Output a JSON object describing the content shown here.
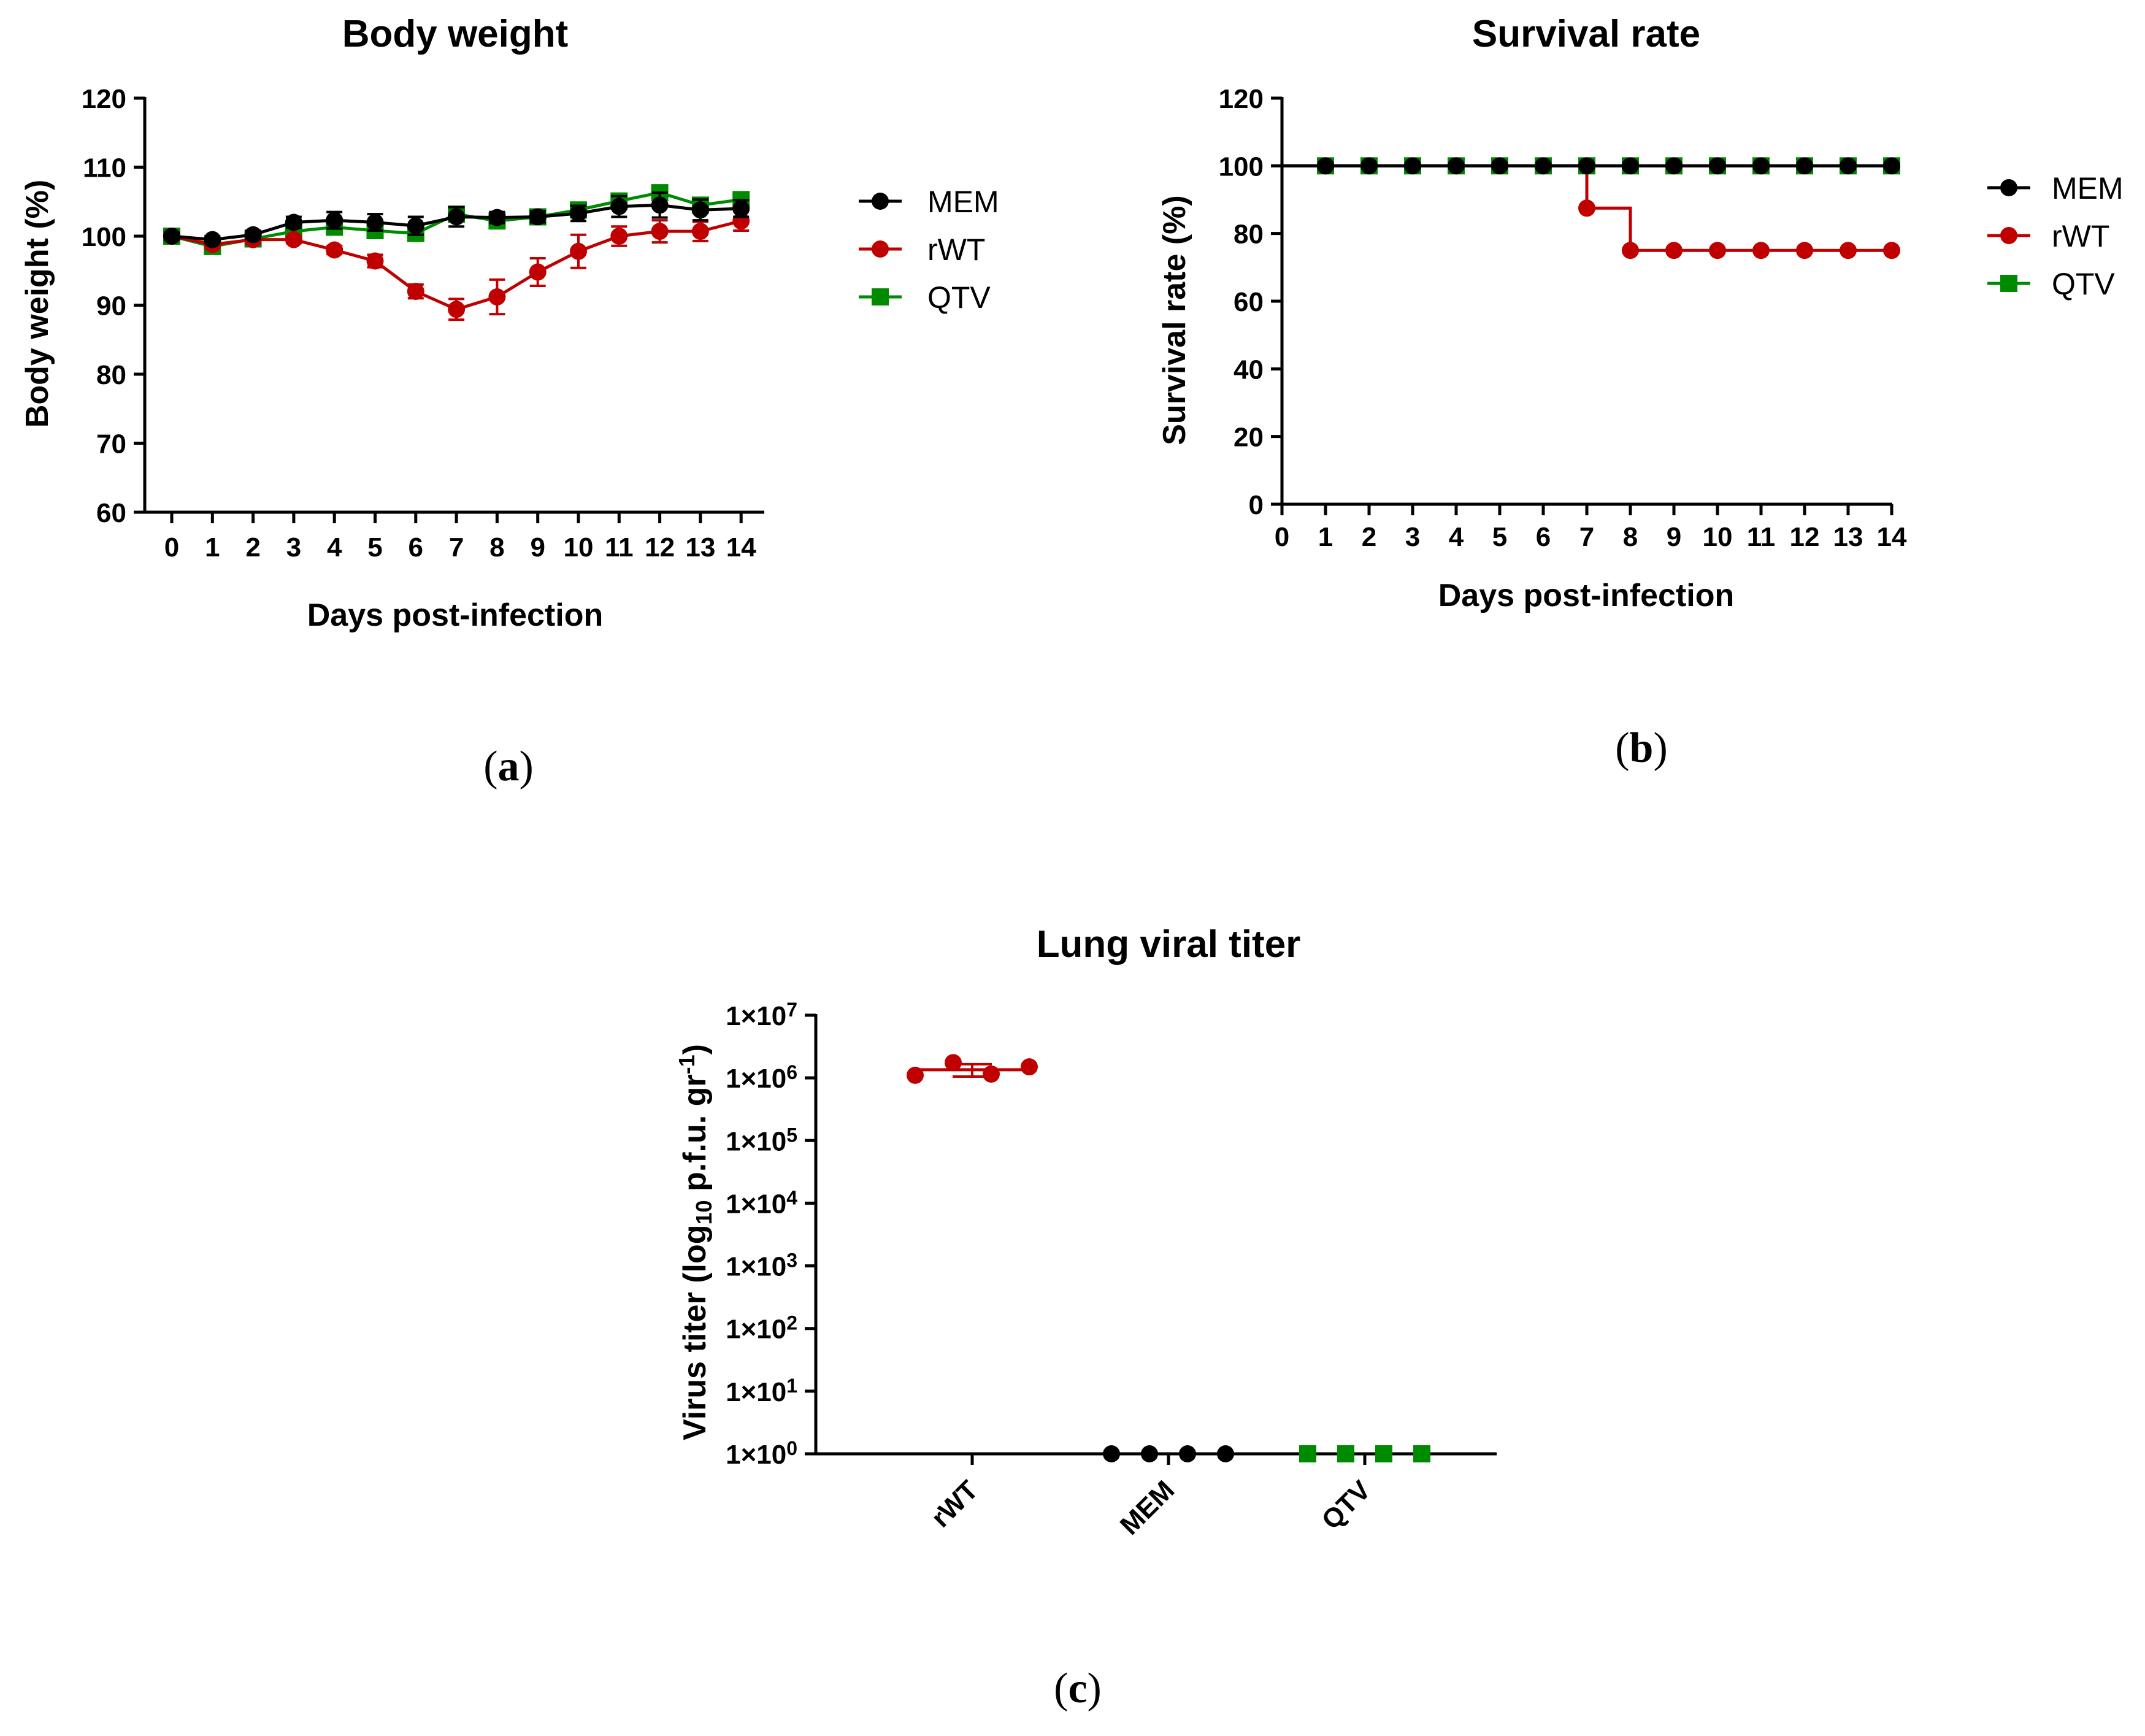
{
  "colors": {
    "MEM": "#000000",
    "rWT": "#c00000",
    "QTV": "#008a00"
  },
  "legend_labels": [
    "MEM",
    "rWT",
    "QTV"
  ],
  "panel_labels": {
    "a": {
      "open": "(",
      "letter": "a",
      "close": ")"
    },
    "b": {
      "open": "(",
      "letter": "b",
      "close": ")"
    },
    "c": {
      "open": "(",
      "letter": "c",
      "close": ")"
    }
  },
  "chart_data": [
    {
      "id": "a",
      "type": "line",
      "title": "Body weight",
      "xlabel": "Days post-infection",
      "ylabel": "Body weight (%)",
      "ylim": [
        60,
        120
      ],
      "yticks": [
        60,
        70,
        80,
        90,
        100,
        110,
        120
      ],
      "x": [
        0,
        1,
        2,
        3,
        4,
        5,
        6,
        7,
        8,
        9,
        10,
        11,
        12,
        13,
        14
      ],
      "series": [
        {
          "name": "MEM",
          "marker": "circle",
          "values": [
            100,
            99.5,
            100.2,
            102,
            102.3,
            102,
            101.5,
            102.8,
            102.7,
            102.8,
            103.3,
            104.3,
            104.5,
            103.8,
            104
          ],
          "errors": [
            0.5,
            0.5,
            0.6,
            0.8,
            1.2,
            1.2,
            1.3,
            1.4,
            0.8,
            0.8,
            1.1,
            1.5,
            1.8,
            1.5,
            1.2
          ]
        },
        {
          "name": "rWT",
          "marker": "circle",
          "values": [
            100,
            98.8,
            99.5,
            99.5,
            98,
            96.4,
            92,
            89.4,
            91.2,
            94.8,
            97.8,
            100,
            100.7,
            100.7,
            102.2
          ],
          "errors": [
            0.5,
            0.5,
            0.6,
            0.5,
            0.6,
            0.9,
            1.0,
            1.5,
            2.5,
            2.0,
            2.4,
            1.4,
            1.6,
            1.4,
            1.4
          ]
        },
        {
          "name": "QTV",
          "marker": "square",
          "values": [
            100,
            98.5,
            99.6,
            100.7,
            101.3,
            100.8,
            100.4,
            103.2,
            102.2,
            102.8,
            103.8,
            105.1,
            106.3,
            104.5,
            105.3
          ],
          "errors": [
            0.4,
            0.4,
            0.5,
            0.6,
            0.5,
            0.5,
            0.5,
            0.5,
            0.5,
            0.5,
            0.5,
            0.6,
            0.7,
            0.6,
            0.6
          ]
        }
      ]
    },
    {
      "id": "b",
      "type": "line",
      "title": "Survival rate",
      "xlabel": "Days post-infection",
      "ylabel": "Survival rate (%)",
      "ylim": [
        0,
        120
      ],
      "yticks": [
        0,
        20,
        40,
        60,
        80,
        100,
        120
      ],
      "x": [
        0,
        1,
        2,
        3,
        4,
        5,
        6,
        7,
        8,
        9,
        10,
        11,
        12,
        13,
        14
      ],
      "series": [
        {
          "name": "MEM",
          "marker": "circle",
          "step": true,
          "values": [
            100,
            100,
            100,
            100,
            100,
            100,
            100,
            100,
            100,
            100,
            100,
            100,
            100,
            100,
            100
          ]
        },
        {
          "name": "rWT",
          "marker": "circle",
          "step": true,
          "values": [
            100,
            100,
            100,
            100,
            100,
            100,
            100,
            87.5,
            75,
            75,
            75,
            75,
            75,
            75,
            75
          ]
        },
        {
          "name": "QTV",
          "marker": "square",
          "step": true,
          "values": [
            100,
            100,
            100,
            100,
            100,
            100,
            100,
            100,
            100,
            100,
            100,
            100,
            100,
            100,
            100
          ]
        }
      ]
    },
    {
      "id": "c",
      "type": "scatter",
      "title": "Lung viral titer",
      "ylabel": {
        "pre": "Virus titer (log",
        "sub": "10",
        "mid": " p.f.u. gr",
        "sup": "-1",
        "post": ")"
      },
      "yscale": "log",
      "ylim_exponent": [
        0,
        7
      ],
      "ytick_exponents": [
        0,
        1,
        2,
        3,
        4,
        5,
        6,
        7
      ],
      "ytick_base": "1×10",
      "categories": [
        "rWT",
        "MEM",
        "QTV"
      ],
      "groups": [
        {
          "name": "rWT",
          "marker": "circle",
          "points": [
            1100000,
            1750000,
            1150000,
            1500000
          ],
          "mean": 1350000,
          "sd": 300000
        },
        {
          "name": "MEM",
          "marker": "circle",
          "points": [
            1,
            1,
            1,
            1
          ]
        },
        {
          "name": "QTV",
          "marker": "square",
          "points": [
            1,
            1,
            1,
            1
          ]
        }
      ]
    }
  ]
}
